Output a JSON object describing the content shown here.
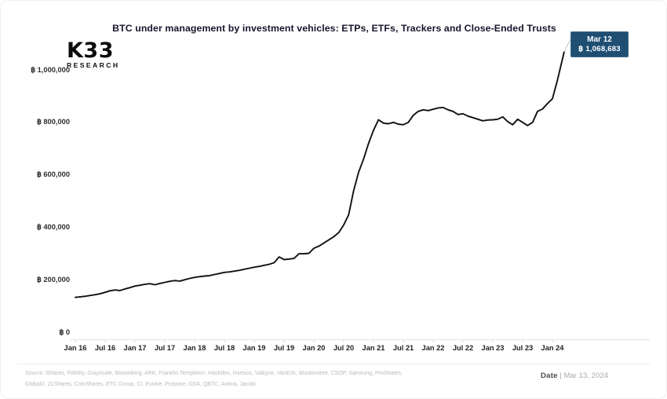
{
  "header": {
    "title": "BTC under management by investment vehicles: ETPs, ETFs, Trackers and Close-Ended Trusts"
  },
  "logo": {
    "line1": "K33",
    "line2": "RESEARCH"
  },
  "tooltip": {
    "line1": "Mar 12",
    "line2": "฿ 1,068,683",
    "bg_color": "#1f4e73"
  },
  "footer": {
    "source_line1": "Source:  iShares, Fidelity, Grayscale, Bloomberg, ARK, Franklin Templeton, Hashdex, Invesco, Valkyrie, VanEck, Wisdomtree, CSOP, Samsung, ProShares,",
    "source_line2": "GlobalX, 21Shares, CoinShares, ETC Group, CI, Evolve, Purpose, DDA, QBTC, Amina, Jacobi",
    "date_label": "Date",
    "date_value": " | Mar 13, 2024"
  },
  "chart_data": {
    "type": "line",
    "title": "BTC under management by investment vehicles: ETPs, ETFs, Trackers and Close-Ended Trusts",
    "xlabel": "",
    "ylabel": "",
    "grid": false,
    "legend": "none",
    "line_color": "#111111",
    "axis_color": "#e3e3e3",
    "tick_color": "#d8d8d8",
    "ylim": [
      0,
      1068683
    ],
    "x_ticks": [
      "Jan 16",
      "Jul 16",
      "Jan 17",
      "Jul 17",
      "Jan 18",
      "Jul 18",
      "Jan 19",
      "Jul 19",
      "Jan 20",
      "Jul 20",
      "Jan 21",
      "Jul 21",
      "Jan 22",
      "Jul 22",
      "Jan 23",
      "Jul 23",
      "Jan 24"
    ],
    "y_ticks": [
      {
        "label": "฿ 0",
        "value": 0
      },
      {
        "label": "฿ 200,000",
        "value": 200000
      },
      {
        "label": "฿ 400,000",
        "value": 400000
      },
      {
        "label": "฿ 600,000",
        "value": 600000
      },
      {
        "label": "฿ 800,000",
        "value": 800000
      },
      {
        "label": "฿ 1,000,000",
        "value": 1000000
      }
    ],
    "end_annotation": {
      "date": "Mar 12",
      "value": 1068683
    },
    "series": [
      {
        "name": "BTC under management",
        "points": [
          [
            "2016-01",
            133000
          ],
          [
            "2016-02",
            135000
          ],
          [
            "2016-03",
            137000
          ],
          [
            "2016-04",
            140000
          ],
          [
            "2016-05",
            143000
          ],
          [
            "2016-06",
            147000
          ],
          [
            "2016-07",
            152000
          ],
          [
            "2016-08",
            158000
          ],
          [
            "2016-09",
            161000
          ],
          [
            "2016-10",
            159000
          ],
          [
            "2016-11",
            165000
          ],
          [
            "2016-12",
            170000
          ],
          [
            "2017-01",
            176000
          ],
          [
            "2017-02",
            179000
          ],
          [
            "2017-03",
            183000
          ],
          [
            "2017-04",
            185000
          ],
          [
            "2017-05",
            181000
          ],
          [
            "2017-06",
            186000
          ],
          [
            "2017-07",
            190000
          ],
          [
            "2017-08",
            194000
          ],
          [
            "2017-09",
            197000
          ],
          [
            "2017-10",
            195000
          ],
          [
            "2017-11",
            200000
          ],
          [
            "2017-12",
            205000
          ],
          [
            "2018-01",
            209000
          ],
          [
            "2018-02",
            212000
          ],
          [
            "2018-03",
            214000
          ],
          [
            "2018-04",
            216000
          ],
          [
            "2018-05",
            220000
          ],
          [
            "2018-06",
            224000
          ],
          [
            "2018-07",
            228000
          ],
          [
            "2018-08",
            230000
          ],
          [
            "2018-09",
            233000
          ],
          [
            "2018-10",
            236000
          ],
          [
            "2018-11",
            240000
          ],
          [
            "2018-12",
            244000
          ],
          [
            "2019-01",
            248000
          ],
          [
            "2019-02",
            251000
          ],
          [
            "2019-03",
            255000
          ],
          [
            "2019-04",
            259000
          ],
          [
            "2019-05",
            265000
          ],
          [
            "2019-06",
            287000
          ],
          [
            "2019-07",
            277000
          ],
          [
            "2019-08",
            279000
          ],
          [
            "2019-09",
            281000
          ],
          [
            "2019-10",
            299000
          ],
          [
            "2019-11",
            299000
          ],
          [
            "2019-12",
            301000
          ],
          [
            "2020-01",
            320000
          ],
          [
            "2020-02",
            328000
          ],
          [
            "2020-03",
            340000
          ],
          [
            "2020-04",
            352000
          ],
          [
            "2020-05",
            364000
          ],
          [
            "2020-06",
            380000
          ],
          [
            "2020-07",
            409000
          ],
          [
            "2020-08",
            448000
          ],
          [
            "2020-09",
            540000
          ],
          [
            "2020-10",
            610000
          ],
          [
            "2020-11",
            660000
          ],
          [
            "2020-12",
            720000
          ],
          [
            "2021-01",
            770000
          ],
          [
            "2021-02",
            810000
          ],
          [
            "2021-03",
            797000
          ],
          [
            "2021-04",
            795000
          ],
          [
            "2021-05",
            800000
          ],
          [
            "2021-06",
            793000
          ],
          [
            "2021-07",
            791000
          ],
          [
            "2021-08",
            800000
          ],
          [
            "2021-09",
            827000
          ],
          [
            "2021-10",
            842000
          ],
          [
            "2021-11",
            848000
          ],
          [
            "2021-12",
            845000
          ],
          [
            "2022-01",
            850000
          ],
          [
            "2022-02",
            855000
          ],
          [
            "2022-03",
            857000
          ],
          [
            "2022-04",
            848000
          ],
          [
            "2022-05",
            842000
          ],
          [
            "2022-06",
            830000
          ],
          [
            "2022-07",
            833000
          ],
          [
            "2022-08",
            824000
          ],
          [
            "2022-09",
            818000
          ],
          [
            "2022-10",
            812000
          ],
          [
            "2022-11",
            806000
          ],
          [
            "2022-12",
            809000
          ],
          [
            "2023-01",
            810000
          ],
          [
            "2023-02",
            812000
          ],
          [
            "2023-03",
            821000
          ],
          [
            "2023-04",
            803000
          ],
          [
            "2023-05",
            791000
          ],
          [
            "2023-06",
            812000
          ],
          [
            "2023-07",
            800000
          ],
          [
            "2023-08",
            788000
          ],
          [
            "2023-09",
            800000
          ],
          [
            "2023-10",
            842000
          ],
          [
            "2023-11",
            851000
          ],
          [
            "2023-12",
            872000
          ],
          [
            "2024-01",
            890000
          ],
          [
            "2024-02",
            960000
          ],
          [
            "2024-03-12",
            1068683
          ]
        ]
      }
    ]
  }
}
